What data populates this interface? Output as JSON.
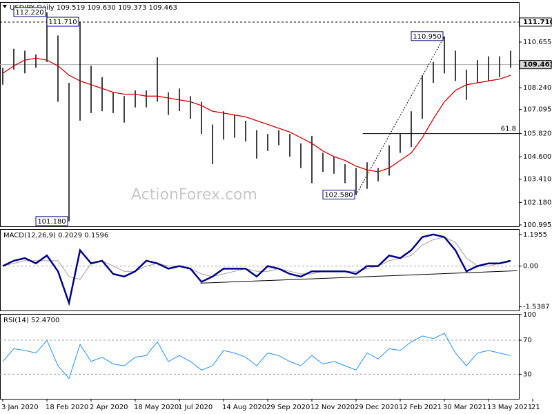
{
  "chart_data": [
    {
      "type": "ohlc",
      "title": "USDJPY,Daily  109.519 109.630 109.373 109.463",
      "watermark": "ActionForex.com",
      "high": [
        109.3,
        110.3,
        110.2,
        110.0,
        112.22,
        111.0,
        108.5,
        111.71,
        109.4,
        108.8,
        108.0,
        107.8,
        108.1,
        108.1,
        109.85,
        108.0,
        108.2,
        107.8,
        107.5,
        106.3,
        107.0,
        106.8,
        106.5,
        106.0,
        105.8,
        106.0,
        105.8,
        105.3,
        105.7,
        104.8,
        104.6,
        104.2,
        104.0,
        104.3,
        104.0,
        105.2,
        105.8,
        107.0,
        108.9,
        109.6,
        110.95,
        110.2,
        109.2,
        109.7,
        109.9,
        109.9,
        110.2
      ],
      "low": [
        108.4,
        109.2,
        109.0,
        109.3,
        109.6,
        107.5,
        101.18,
        106.5,
        106.9,
        107.0,
        106.9,
        106.4,
        107.2,
        107.2,
        107.5,
        106.8,
        107.0,
        106.6,
        105.8,
        104.2,
        105.5,
        105.6,
        105.4,
        104.5,
        104.9,
        105.2,
        104.6,
        104.0,
        103.2,
        103.8,
        103.7,
        103.2,
        102.58,
        102.9,
        103.3,
        103.6,
        104.8,
        105.1,
        106.6,
        108.5,
        109.0,
        108.6,
        107.6,
        108.5,
        108.6,
        108.8,
        109.3
      ],
      "color": "#000000",
      "ma": {
        "color": "#d40000",
        "values": [
          109.0,
          109.4,
          109.7,
          109.8,
          109.7,
          109.4,
          108.9,
          108.6,
          108.4,
          108.2,
          108.0,
          107.9,
          107.9,
          107.8,
          107.8,
          107.7,
          107.6,
          107.5,
          107.3,
          107.0,
          106.9,
          106.8,
          106.7,
          106.5,
          106.3,
          106.1,
          105.9,
          105.6,
          105.3,
          104.9,
          104.6,
          104.4,
          104.1,
          103.9,
          103.8,
          104.0,
          104.4,
          104.8,
          105.6,
          106.6,
          107.5,
          108.1,
          108.4,
          108.5,
          108.6,
          108.7,
          108.9
        ]
      },
      "ylim": [
        100.92,
        112.73
      ],
      "yticks": [
        110.655,
        {
          "value": 108.24,
          "label": "108.240"
        },
        107.095,
        {
          "value": 105.82,
          "label": "105.820"
        },
        {
          "value": 104.6,
          "label": "104.600"
        },
        {
          "value": 103.41,
          "label": "103.410"
        },
        {
          "value": 102.18,
          "label": "102.180"
        },
        100.995
      ],
      "hlines": [
        {
          "value": 111.71,
          "label": "111.710",
          "style": "dashed"
        },
        {
          "value": 109.463,
          "label": "109.463",
          "style": "solid"
        }
      ],
      "fib": {
        "value": 105.82,
        "label": "61.8",
        "x0": 32.6
      },
      "annotations": [
        {
          "label": "112.220",
          "value": 112.22,
          "x": 4
        },
        {
          "label": "111.710",
          "value": 111.71,
          "x": 7
        },
        {
          "label": "101.180",
          "value": 101.18,
          "x": 6
        },
        {
          "label": "110.950",
          "value": 110.95,
          "x": 40
        },
        {
          "label": "102.580",
          "value": 102.58,
          "x": 32
        }
      ]
    },
    {
      "type": "line",
      "title": "MACD(12,26,9) 0.2029 0.1596",
      "series": [
        {
          "color": "#00008b",
          "values": [
            0.0,
            0.2,
            0.3,
            0.1,
            0.4,
            -0.2,
            -1.4,
            0.6,
            0.1,
            0.2,
            -0.3,
            -0.4,
            -0.2,
            0.2,
            0.1,
            -0.1,
            0.0,
            -0.1,
            -0.6,
            -0.4,
            -0.1,
            -0.1,
            -0.1,
            -0.4,
            0.0,
            -0.1,
            -0.3,
            -0.4,
            -0.2,
            -0.2,
            -0.2,
            -0.2,
            -0.3,
            0.0,
            0.0,
            0.4,
            0.3,
            0.6,
            1.1,
            1.2,
            1.1,
            0.6,
            -0.2,
            0.0,
            0.1,
            0.1,
            0.2029
          ]
        },
        {
          "color": "#b09a9a",
          "values": [
            0.0,
            0.1,
            0.2,
            0.2,
            0.2,
            0.2,
            -0.4,
            -0.5,
            0.1,
            0.2,
            0.0,
            -0.2,
            -0.2,
            0.0,
            0.1,
            0.0,
            0.0,
            -0.1,
            -0.3,
            -0.4,
            -0.3,
            -0.2,
            -0.1,
            -0.2,
            -0.2,
            -0.1,
            -0.2,
            -0.3,
            -0.3,
            -0.2,
            -0.2,
            -0.2,
            -0.2,
            -0.1,
            0.0,
            0.2,
            0.3,
            0.4,
            0.8,
            1.0,
            1.1,
            0.9,
            0.3,
            0.0,
            0.0,
            0.1,
            0.1596
          ]
        }
      ],
      "ylim": [
        -1.688,
        1.377
      ],
      "yticks": [
        1.1955,
        {
          "value": 0,
          "label": "0.00"
        },
        -1.5387
      ],
      "levels": [
        0
      ],
      "trendline": {
        "x": [
          17.9,
          46.6
        ],
        "values": [
          -0.65,
          -0.18
        ]
      }
    },
    {
      "type": "line",
      "title": "RSI(14) 52.4700",
      "series": [
        {
          "color": "#1e90ff",
          "values": [
            45,
            60,
            58,
            55,
            70,
            40,
            25,
            65,
            45,
            50,
            42,
            40,
            50,
            52,
            68,
            45,
            52,
            45,
            35,
            40,
            58,
            55,
            50,
            40,
            55,
            52,
            45,
            40,
            52,
            42,
            45,
            40,
            35,
            55,
            48,
            60,
            58,
            68,
            75,
            72,
            78,
            55,
            40,
            55,
            58,
            55,
            52
          ]
        }
      ],
      "ylim": [
        1.2,
        100
      ],
      "yticks": [
        100,
        70,
        30
      ],
      "levels": [
        70,
        30
      ],
      "xlim": [
        -0.25,
        46.75
      ],
      "xticks": [
        {
          "value": 0,
          "label": "3 Jan 2020"
        },
        {
          "value": 4,
          "label": "18 Feb 2020"
        },
        {
          "value": 8,
          "label": "2 Apr 2020"
        },
        {
          "value": 12,
          "label": "18 May 2020"
        },
        {
          "value": 16,
          "label": "1 Jul 2020"
        },
        {
          "value": 20,
          "label": "14 Aug 2020"
        },
        {
          "value": 24,
          "label": "29 Sep 2020"
        },
        {
          "value": 28,
          "label": "12 Nov 2020"
        },
        {
          "value": 32,
          "label": "29 Dec 2020"
        },
        {
          "value": 36,
          "label": "12 Feb 2021"
        },
        {
          "value": 40,
          "label": "30 Mar 2021"
        },
        {
          "value": 44,
          "label": "13 May 2021"
        },
        {
          "value": 48,
          "label": "21"
        }
      ]
    }
  ]
}
